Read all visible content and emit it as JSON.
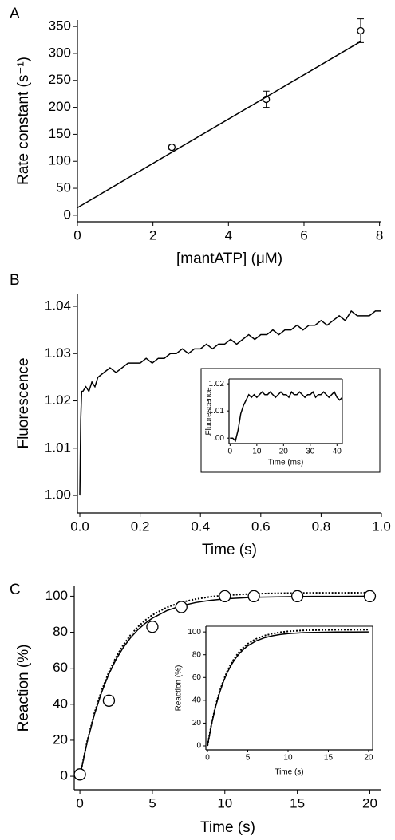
{
  "chart_data": [
    {
      "type": "scatter",
      "label": "A",
      "xlabel": "[mantATP] (μM)",
      "ylabel": "Rate constant (s⁻¹)",
      "xlim": [
        0,
        8.05
      ],
      "ylim": [
        -12,
        362
      ],
      "xticks": [
        0,
        2,
        4,
        6,
        8
      ],
      "yticks": [
        0,
        50,
        100,
        150,
        200,
        250,
        300,
        350
      ],
      "series": [
        {
          "mode": "markers",
          "color": "#000000",
          "x": [
            2.5,
            5,
            7.5
          ],
          "values": [
            126,
            215,
            342
          ],
          "errors": [
            4,
            15,
            22
          ]
        },
        {
          "mode": "line",
          "color": "#000000",
          "x": [
            0,
            7.5
          ],
          "values": [
            14,
            322
          ]
        }
      ]
    },
    {
      "type": "line",
      "label": "B",
      "xlabel": "Time (s)",
      "ylabel": "Fluorescence",
      "xlim": [
        -0.008,
        1.0
      ],
      "ylim": [
        0.9963,
        1.0427
      ],
      "xticks": [
        {
          "value": 0,
          "label": "0.0"
        },
        0.2,
        0.4,
        0.6,
        0.8,
        {
          "value": 1,
          "label": "1.0"
        }
      ],
      "yticks": [
        {
          "value": 1,
          "label": "1.00"
        },
        1.01,
        1.02,
        1.03,
        1.04
      ],
      "series": [
        {
          "mode": "line",
          "color": "#000000",
          "x": [
            0,
            0.003,
            0.006,
            0.01,
            0.02,
            0.03,
            0.04,
            0.05,
            0.06,
            0.08,
            0.1,
            0.12,
            0.14,
            0.16,
            0.18,
            0.2,
            0.22,
            0.24,
            0.26,
            0.28,
            0.3,
            0.32,
            0.34,
            0.36,
            0.38,
            0.4,
            0.42,
            0.44,
            0.46,
            0.48,
            0.5,
            0.52,
            0.54,
            0.56,
            0.58,
            0.6,
            0.62,
            0.64,
            0.66,
            0.68,
            0.7,
            0.72,
            0.74,
            0.76,
            0.78,
            0.8,
            0.82,
            0.84,
            0.86,
            0.88,
            0.9,
            0.92,
            0.94,
            0.96,
            0.98,
            1.0
          ],
          "values": [
            1.0,
            1.016,
            1.022,
            1.022,
            1.023,
            1.022,
            1.024,
            1.023,
            1.025,
            1.026,
            1.027,
            1.026,
            1.027,
            1.028,
            1.028,
            1.028,
            1.029,
            1.028,
            1.029,
            1.029,
            1.03,
            1.03,
            1.031,
            1.03,
            1.031,
            1.031,
            1.032,
            1.031,
            1.032,
            1.032,
            1.033,
            1.032,
            1.033,
            1.034,
            1.033,
            1.034,
            1.034,
            1.035,
            1.034,
            1.035,
            1.035,
            1.036,
            1.035,
            1.036,
            1.036,
            1.037,
            1.036,
            1.037,
            1.038,
            1.037,
            1.039,
            1.038,
            1.038,
            1.038,
            1.039,
            1.039
          ]
        }
      ]
    },
    {
      "type": "line",
      "xlabel": "Time (ms)",
      "ylabel": "Fluorescence",
      "xlim": [
        -0.4,
        42
      ],
      "ylim": [
        0.998,
        1.0218
      ],
      "xticks": [
        0,
        10,
        20,
        30,
        40
      ],
      "yticks": [
        {
          "value": 1,
          "label": "1.00"
        },
        1.01,
        1.02
      ],
      "series": [
        {
          "mode": "line",
          "color": "#000000",
          "x": [
            0,
            1,
            2,
            3,
            4,
            5,
            6,
            7,
            8,
            9,
            10,
            11,
            12,
            13,
            14,
            15,
            16,
            17,
            18,
            19,
            20,
            21,
            22,
            23,
            24,
            25,
            26,
            27,
            28,
            29,
            30,
            31,
            32,
            33,
            34,
            35,
            36,
            37,
            38,
            39,
            40,
            41,
            42
          ],
          "values": [
            1.0,
            1.0,
            0.999,
            1.003,
            1.009,
            1.012,
            1.014,
            1.016,
            1.015,
            1.016,
            1.015,
            1.016,
            1.017,
            1.016,
            1.016,
            1.017,
            1.016,
            1.015,
            1.016,
            1.017,
            1.016,
            1.016,
            1.015,
            1.017,
            1.016,
            1.016,
            1.017,
            1.016,
            1.015,
            1.016,
            1.016,
            1.017,
            1.015,
            1.016,
            1.016,
            1.017,
            1.016,
            1.015,
            1.016,
            1.017,
            1.015,
            1.014,
            1.015
          ]
        }
      ]
    },
    {
      "type": "scatter",
      "label": "C",
      "xlabel": "Time (s)",
      "ylabel": "Reaction (%)",
      "xlim": [
        -0.39,
        20.8
      ],
      "ylim": [
        -7.5,
        105.5
      ],
      "xticks": [
        0,
        5,
        10,
        15,
        20
      ],
      "yticks": [
        0,
        20,
        40,
        60,
        80,
        100
      ],
      "series": [
        {
          "mode": "line",
          "color": "#000000",
          "x": [
            0,
            0.5,
            1,
            1.5,
            2,
            2.5,
            3,
            3.5,
            4,
            4.5,
            5,
            6,
            7,
            8,
            9,
            10,
            12,
            14,
            16,
            18,
            20
          ],
          "values": [
            0,
            18.9,
            34.3,
            46.7,
            56.8,
            65.0,
            71.6,
            77.0,
            81.4,
            84.9,
            87.8,
            92.0,
            94.7,
            96.5,
            97.7,
            98.5,
            99.4,
            99.7,
            99.9,
            99.9,
            100
          ]
        },
        {
          "mode": "dotted",
          "color": "#000000",
          "x": [
            0,
            0.5,
            1,
            1.5,
            2,
            2.5,
            3,
            3.5,
            4,
            4.5,
            5,
            6,
            7,
            8,
            9,
            10,
            12,
            14,
            16,
            18,
            20
          ],
          "values": [
            0,
            19.3,
            35.0,
            47.6,
            57.9,
            66.3,
            73.0,
            78.5,
            83.0,
            86.6,
            89.6,
            93.8,
            96.6,
            98.4,
            99.7,
            100.5,
            101.4,
            101.7,
            101.9,
            101.9,
            102
          ]
        },
        {
          "mode": "markers",
          "color": "#000000",
          "x": [
            0,
            2,
            5,
            7,
            10,
            12,
            15,
            20
          ],
          "values": [
            1,
            42,
            83,
            94,
            100,
            100,
            100,
            100
          ]
        }
      ]
    },
    {
      "type": "line",
      "xlabel": "Time (s)",
      "ylabel": "Reaction (%)",
      "xlim": [
        -0.2,
        20.5
      ],
      "ylim": [
        -3.5,
        105
      ],
      "xticks": [
        0,
        5,
        10,
        15,
        20
      ],
      "yticks": [
        0,
        20,
        40,
        60,
        80,
        100
      ],
      "series": [
        {
          "mode": "line",
          "color": "#000000",
          "x": [
            0,
            0.5,
            1,
            1.5,
            2,
            2.5,
            3,
            3.5,
            4,
            4.5,
            5,
            6,
            7,
            8,
            9,
            10,
            12,
            14,
            16,
            18,
            20
          ],
          "values": [
            0,
            18.9,
            34.3,
            46.7,
            56.8,
            65.0,
            71.6,
            77.0,
            81.4,
            84.9,
            87.8,
            92.0,
            94.7,
            96.5,
            97.7,
            98.5,
            99.4,
            99.7,
            99.9,
            99.9,
            100
          ]
        },
        {
          "mode": "dotted",
          "color": "#000000",
          "x": [
            0,
            0.5,
            1,
            1.5,
            2,
            2.5,
            3,
            3.5,
            4,
            4.5,
            5,
            6,
            7,
            8,
            9,
            10,
            12,
            14,
            16,
            18,
            20
          ],
          "values": [
            0,
            19.3,
            35.0,
            47.6,
            57.9,
            66.3,
            73.0,
            78.5,
            83.0,
            86.6,
            89.6,
            93.8,
            96.6,
            98.4,
            99.7,
            100.5,
            101.4,
            101.7,
            101.9,
            101.9,
            102
          ]
        }
      ]
    }
  ]
}
